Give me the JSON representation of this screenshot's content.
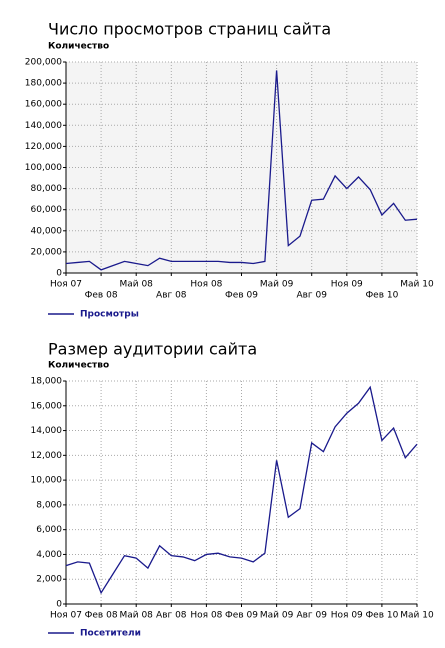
{
  "chart_data": [
    {
      "type": "line",
      "title": "Число просмотров страниц сайта",
      "y_label": "Количество",
      "categories": [
        "Ноя 07",
        null,
        null,
        "Фев 08",
        null,
        null,
        "Май 08",
        null,
        null,
        "Авг 08",
        null,
        null,
        "Ноя 08",
        null,
        null,
        "Фев 09",
        null,
        null,
        "Май 09",
        null,
        null,
        "Авг 09",
        null,
        null,
        "Ноя 09",
        null,
        null,
        "Фев 10",
        null,
        null,
        "Май 10"
      ],
      "series": [
        {
          "name": "Просмотры",
          "color": "#1a1a8c",
          "values": [
            9000,
            10000,
            11000,
            3000,
            7000,
            11000,
            9000,
            7000,
            14000,
            11000,
            11000,
            11000,
            11000,
            11000,
            10000,
            10000,
            9000,
            11000,
            192000,
            26000,
            35000,
            69000,
            70000,
            92000,
            80000,
            91000,
            79000,
            55000,
            66000,
            50000,
            51000
          ]
        }
      ],
      "ylim": [
        0,
        200000
      ],
      "yticks": [
        0,
        {
          "value": 20000,
          "label": "20,000"
        },
        {
          "value": 40000,
          "label": "40,000"
        },
        {
          "value": 60000,
          "label": "60,000"
        },
        {
          "value": 80000,
          "label": "80,000"
        },
        {
          "value": 100000,
          "label": "100,000"
        },
        {
          "value": 120000,
          "label": "120,000"
        },
        {
          "value": 140000,
          "label": "140,000"
        },
        {
          "value": 160000,
          "label": "160,000"
        },
        {
          "value": 180000,
          "label": "180,000"
        },
        {
          "value": 200000,
          "label": "200,000"
        }
      ],
      "grid": true
    },
    {
      "type": "line",
      "title": "Размер аудитории сайта",
      "y_label": "Количество",
      "categories": [
        "Ноя 07",
        null,
        null,
        "Фев 08",
        null,
        null,
        "Май 08",
        null,
        null,
        "Авг 08",
        null,
        null,
        "Ноя 08",
        null,
        null,
        "Фев 09",
        null,
        null,
        "Май 09",
        null,
        null,
        "Авг 09",
        null,
        null,
        "Ноя 09",
        null,
        null,
        "Фев 10",
        null,
        null,
        "Май 10"
      ],
      "series": [
        {
          "name": "Посетители",
          "color": "#1a1a8c",
          "values": [
            3100,
            3400,
            3300,
            900,
            2400,
            3900,
            3700,
            2900,
            4700,
            3900,
            3800,
            3500,
            4000,
            4100,
            3800,
            3700,
            3400,
            4100,
            11600,
            7000,
            7700,
            13000,
            12300,
            14300,
            15400,
            16200,
            17500,
            13200,
            14200,
            11800,
            12900
          ]
        }
      ],
      "ylim": [
        0,
        18000
      ],
      "yticks": [
        0,
        {
          "value": 2000,
          "label": "2,000"
        },
        {
          "value": 4000,
          "label": "4,000"
        },
        {
          "value": 6000,
          "label": "6,000"
        },
        {
          "value": 8000,
          "label": "8,000"
        },
        {
          "value": 10000,
          "label": "10,000"
        },
        {
          "value": 12000,
          "label": "12,000"
        },
        {
          "value": 14000,
          "label": "14,000"
        },
        {
          "value": 16000,
          "label": "16,000"
        },
        {
          "value": 18000,
          "label": "18,000"
        }
      ],
      "grid": true
    }
  ]
}
